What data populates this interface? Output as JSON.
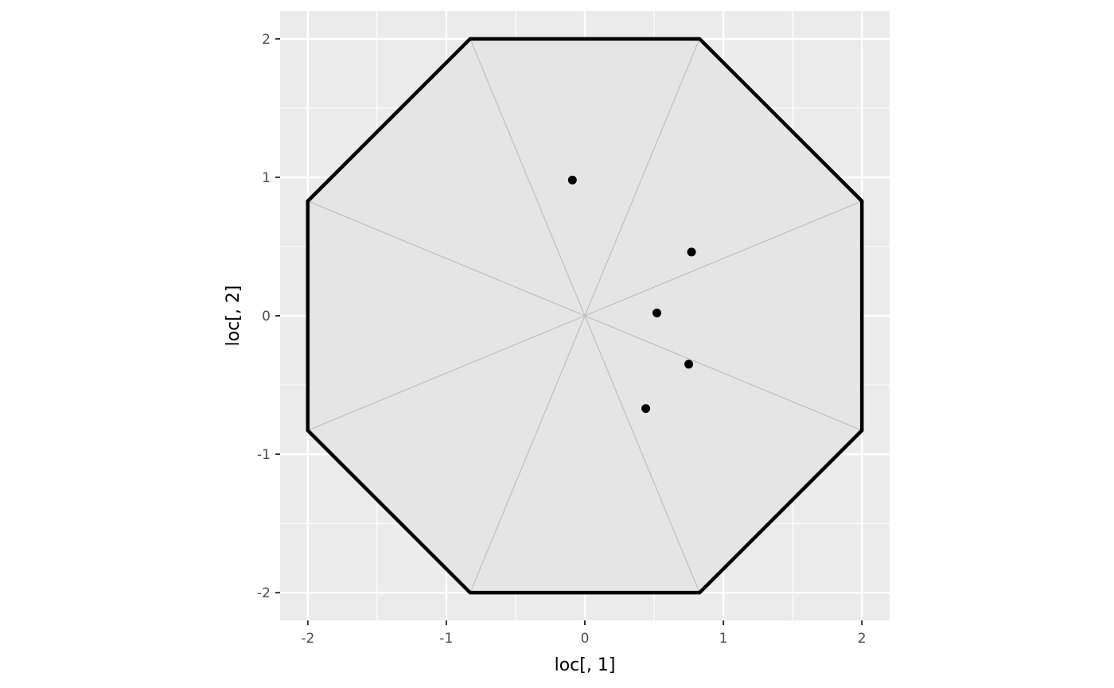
{
  "chart_data": {
    "type": "scatter",
    "xlabel": "loc[, 1]",
    "ylabel": "loc[, 2]",
    "xlim": [
      -2.2,
      2.2
    ],
    "ylim": [
      -2.2,
      2.2
    ],
    "x_ticks": [
      -2,
      -1,
      0,
      1,
      2
    ],
    "y_ticks": [
      -2,
      -1,
      0,
      1,
      2
    ],
    "x_tick_labels": [
      "-2",
      "-1",
      "0",
      "1",
      "2"
    ],
    "y_tick_labels": [
      "-2",
      "-1",
      "0",
      "1",
      "2"
    ],
    "grid": true,
    "coord_equal": true,
    "points": [
      {
        "x": -0.09,
        "y": 0.98
      },
      {
        "x": 0.77,
        "y": 0.46
      },
      {
        "x": 0.52,
        "y": 0.02
      },
      {
        "x": 0.75,
        "y": -0.35
      },
      {
        "x": 0.44,
        "y": -0.67
      }
    ],
    "boundary_polygon": [
      [
        -0.828,
        2
      ],
      [
        0.828,
        2
      ],
      [
        2,
        0.828
      ],
      [
        2,
        -0.828
      ],
      [
        0.828,
        -2
      ],
      [
        -0.828,
        -2
      ],
      [
        -2,
        -0.828
      ],
      [
        -2,
        0.828
      ]
    ],
    "sector_center": [
      0,
      0
    ],
    "colors": {
      "panel_background": "#ebebeb",
      "grid_line": "#ffffff",
      "polygon_fill": "#e5e5e5",
      "sector_line": "#bebebe",
      "boundary_line": "#000000",
      "point": "#000000",
      "tick_label": "#4d4d4d"
    }
  }
}
